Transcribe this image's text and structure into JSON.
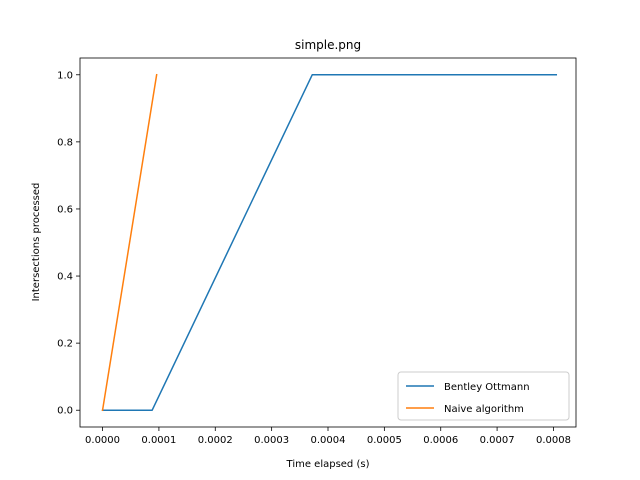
{
  "chart_data": {
    "type": "line",
    "title": "simple.png",
    "xlabel": "Time elapsed (s)",
    "ylabel": "Intersections processed",
    "xlim": [
      -4e-05,
      0.00084
    ],
    "ylim": [
      -0.05,
      1.05
    ],
    "xticks": [
      0,
      0.0001,
      0.0002,
      0.0003,
      0.0004,
      0.0005,
      0.0006,
      0.0007,
      0.0008
    ],
    "xtick_labels": [
      "0.0000",
      "0.0001",
      "0.0002",
      "0.0003",
      "0.0004",
      "0.0005",
      "0.0006",
      "0.0007",
      "0.0008"
    ],
    "yticks": [
      0,
      0.2,
      0.4,
      0.6,
      0.8,
      1.0
    ],
    "ytick_labels": [
      "0.0",
      "0.2",
      "0.4",
      "0.6",
      "0.8",
      "1.0"
    ],
    "grid": false,
    "legend_position": "lower-right",
    "series": [
      {
        "name": "Bentley Ottmann",
        "color": "#1f77b4",
        "x": [
          0,
          8.8e-05,
          0.000372,
          0.000805
        ],
        "y": [
          0,
          0,
          1,
          1
        ]
      },
      {
        "name": "Naive algorithm",
        "color": "#ff7f0e",
        "x": [
          0,
          9.6e-05
        ],
        "y": [
          0,
          1
        ]
      }
    ]
  }
}
